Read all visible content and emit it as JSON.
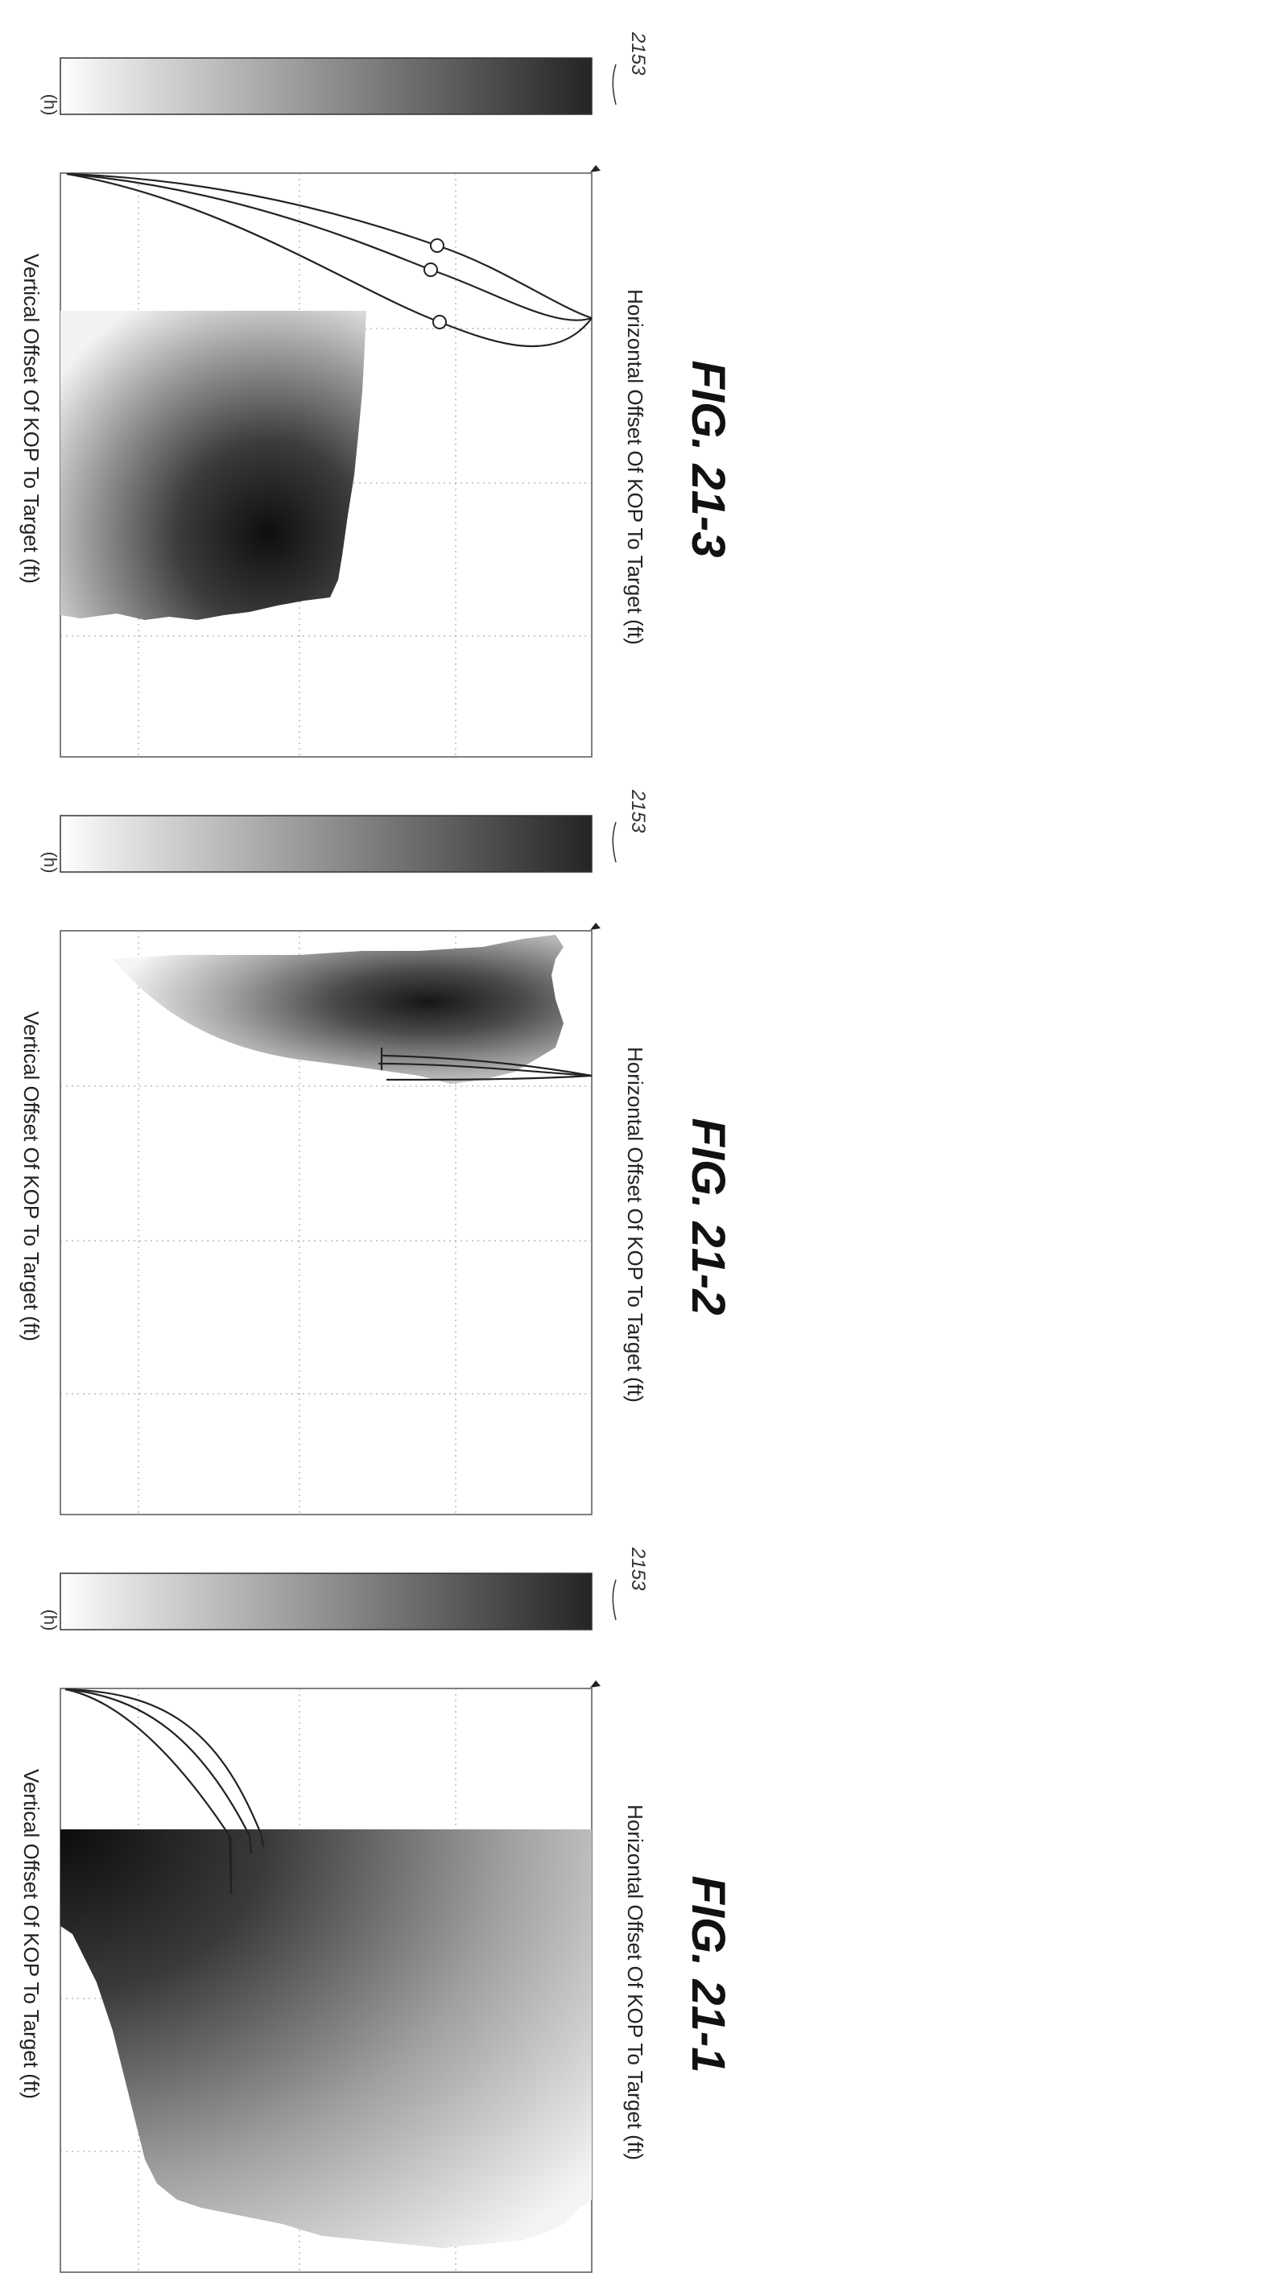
{
  "figures": [
    {
      "id": "fig-1",
      "caption": "FIG. 21-1",
      "ref": "2153",
      "colorbar_label": "(h)",
      "x_label": "Horizontal Offset Of KOP To Target (ft)",
      "y_label": "Vertical Offset Of KOP To Target (ft)",
      "colormap": "grayscale: light (low) to dark (high)",
      "grid": true,
      "markers": 0
    },
    {
      "id": "fig-2",
      "caption": "FIG. 21-2",
      "ref": "2153",
      "colorbar_label": "(h)",
      "x_label": "Horizontal Offset Of KOP To Target (ft)",
      "y_label": "Vertical Offset Of KOP To Target (ft)",
      "colormap": "grayscale: light (low) to dark (high)",
      "grid": true,
      "markers": 0
    },
    {
      "id": "fig-3",
      "caption": "FIG. 21-3",
      "ref": "2153",
      "colorbar_label": "(h)",
      "x_label": "Horizontal Offset Of KOP To Target (ft)",
      "y_label": "Vertical Offset Of KOP To Target (ft)",
      "colormap": "grayscale: light (low) to dark (high)",
      "grid": true,
      "markers": 3
    }
  ],
  "colors": {
    "line": "#222222",
    "grid": "#9a9a9a",
    "dark": "#151515",
    "light": "#ffffff"
  }
}
